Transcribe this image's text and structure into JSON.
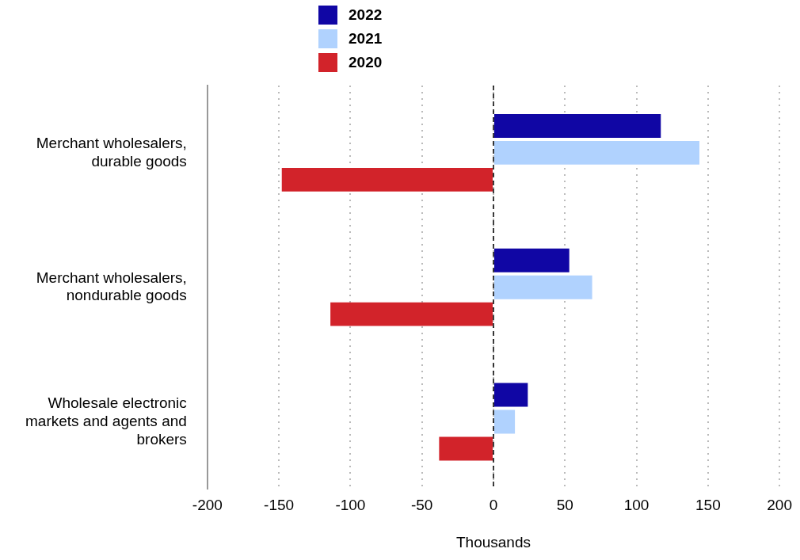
{
  "chart_data": {
    "type": "bar",
    "orientation": "horizontal",
    "xlabel": "Thousands",
    "categories": [
      "Merchant wholesalers, durable goods",
      "Merchant wholesalers, nondurable goods",
      "Wholesale electronic markets and agents and brokers"
    ],
    "series": [
      {
        "name": "2022",
        "color": "#1006a4",
        "values": [
          117,
          53,
          24
        ]
      },
      {
        "name": "2021",
        "color": "#b0d2fe",
        "values": [
          144,
          69,
          15
        ]
      },
      {
        "name": "2020",
        "color": "#d2232a",
        "values": [
          -148,
          -114,
          -38
        ]
      }
    ],
    "xlim": [
      -200,
      200
    ],
    "xticks": [
      -200,
      -150,
      -100,
      -50,
      0,
      50,
      100,
      150,
      200
    ],
    "grid": "x",
    "legend": "top",
    "ref_lines": [
      {
        "axis": "x",
        "value": 0,
        "line_style": "dashed",
        "color": "#000000"
      }
    ]
  }
}
